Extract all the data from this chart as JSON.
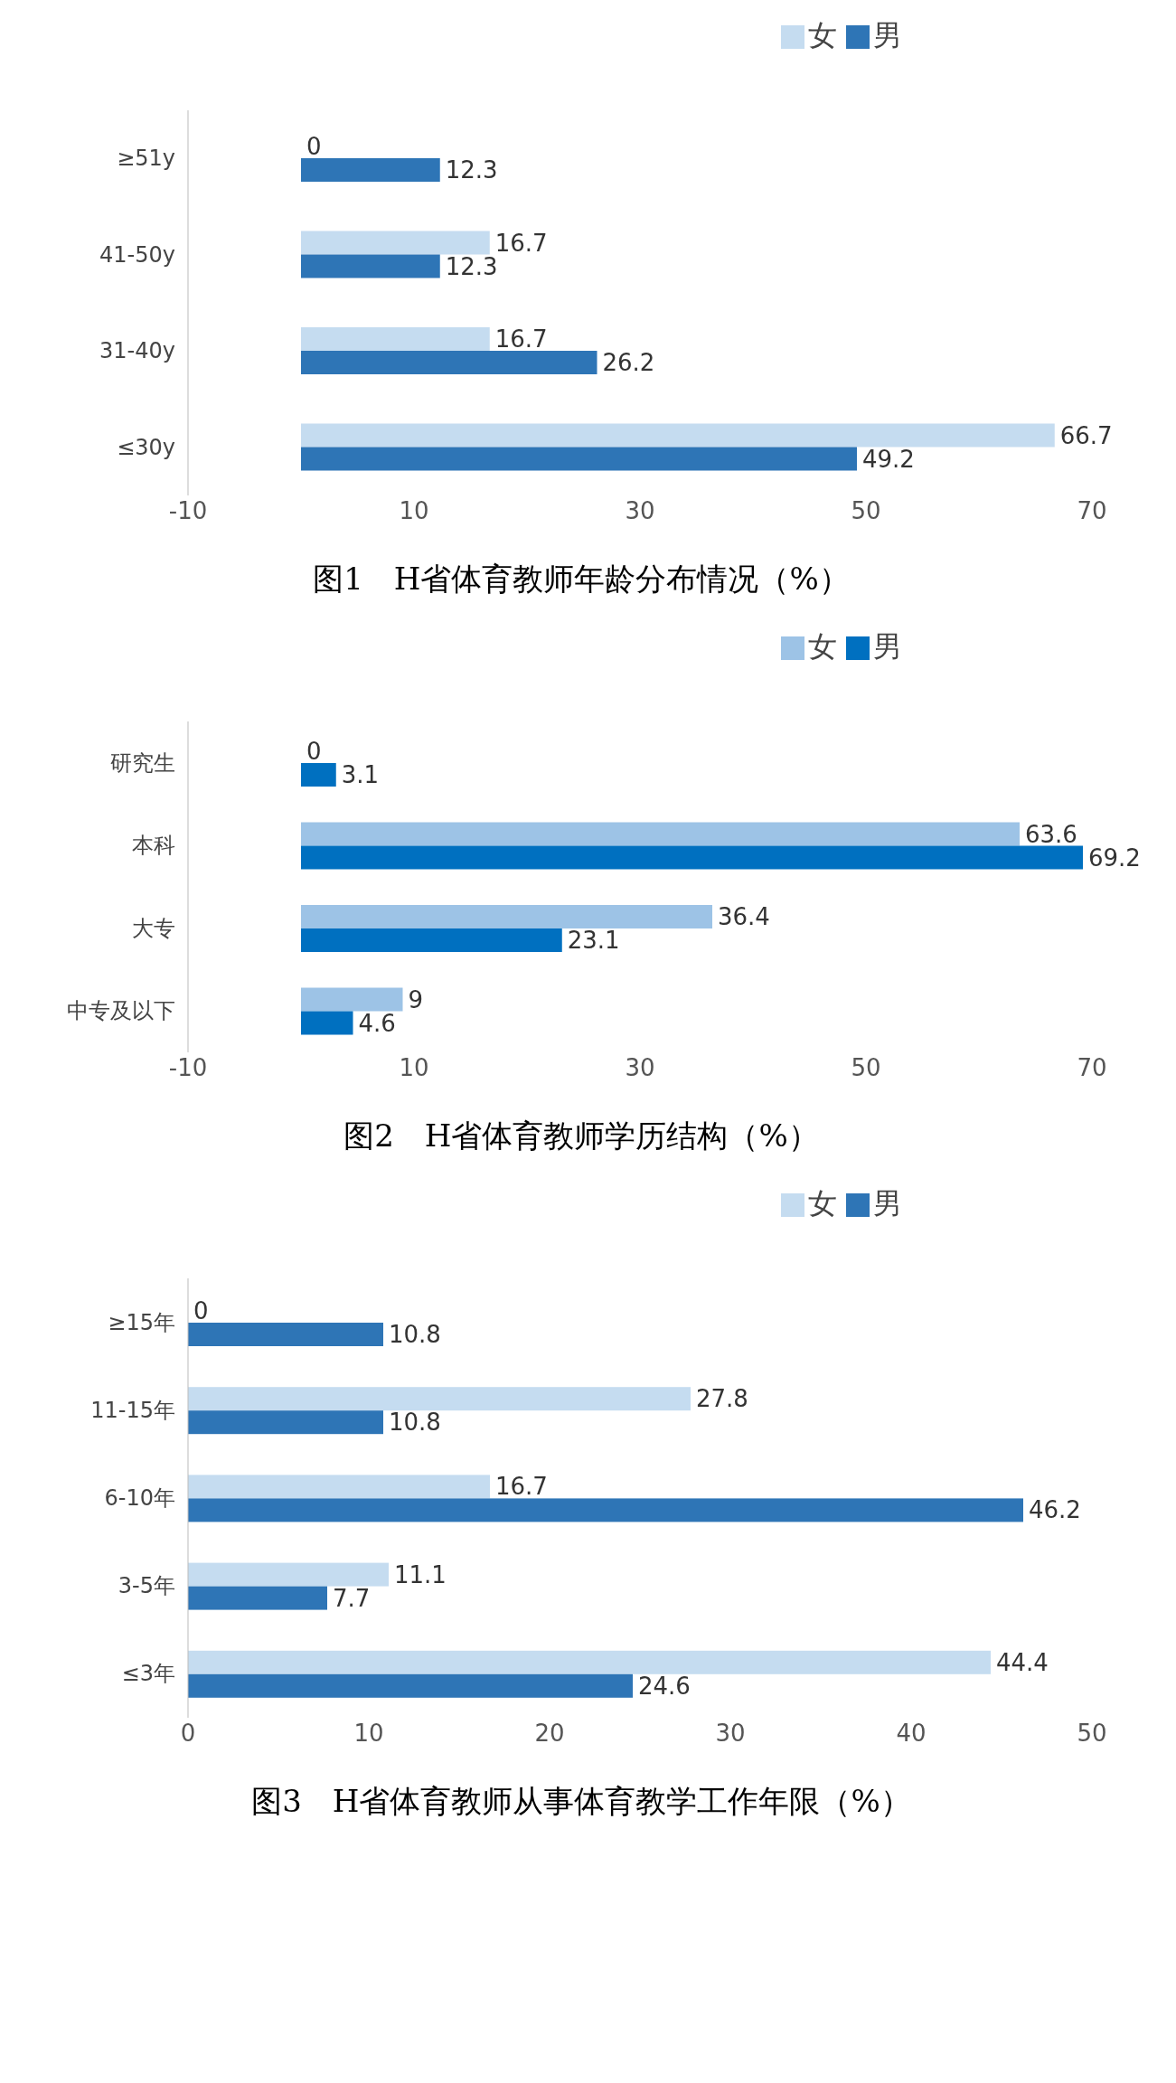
{
  "chart_data": [
    {
      "type": "bar",
      "orientation": "horizontal",
      "title": "图1　H省体育教师年龄分布情况（%）",
      "categories": [
        "≥51y",
        "41-50y",
        "31-40y",
        "≤30y"
      ],
      "series": [
        {
          "name": "女",
          "color": "#c5dcf0",
          "values": [
            0,
            16.7,
            16.7,
            66.7
          ]
        },
        {
          "name": "男",
          "color": "#2e75b6",
          "values": [
            12.3,
            12.3,
            26.2,
            49.2
          ]
        }
      ],
      "xlim": [
        -10,
        70
      ],
      "xticks": [
        -10,
        10,
        30,
        50,
        70
      ],
      "data_labels": true,
      "legend": "top right"
    },
    {
      "type": "bar",
      "orientation": "horizontal",
      "title": "图2　H省体育教师学历结构（%）",
      "categories": [
        "研究生",
        "本科",
        "大专",
        "中专及以下"
      ],
      "series": [
        {
          "name": "女",
          "color": "#9dc3e6",
          "values": [
            0,
            63.6,
            36.4,
            9
          ]
        },
        {
          "name": "男",
          "color": "#0070c0",
          "values": [
            3.1,
            69.2,
            23.1,
            4.6
          ]
        }
      ],
      "xlim": [
        -10,
        70
      ],
      "xticks": [
        -10,
        10,
        30,
        50,
        70
      ],
      "data_labels": true,
      "legend": "top right"
    },
    {
      "type": "bar",
      "orientation": "horizontal",
      "title": "图3　H省体育教师从事体育教学工作年限（%）",
      "categories": [
        "≥15年",
        "11-15年",
        "6-10年",
        "3-5年",
        "≤3年"
      ],
      "series": [
        {
          "name": "女",
          "color": "#c5dcf0",
          "values": [
            0,
            27.8,
            16.7,
            11.1,
            44.4
          ]
        },
        {
          "name": "男",
          "color": "#2e75b6",
          "values": [
            10.8,
            10.8,
            46.2,
            7.7,
            24.6
          ]
        }
      ],
      "xlim": [
        0,
        50
      ],
      "xticks": [
        0,
        10,
        20,
        30,
        40,
        50
      ],
      "data_labels": true,
      "legend": "top right"
    }
  ]
}
